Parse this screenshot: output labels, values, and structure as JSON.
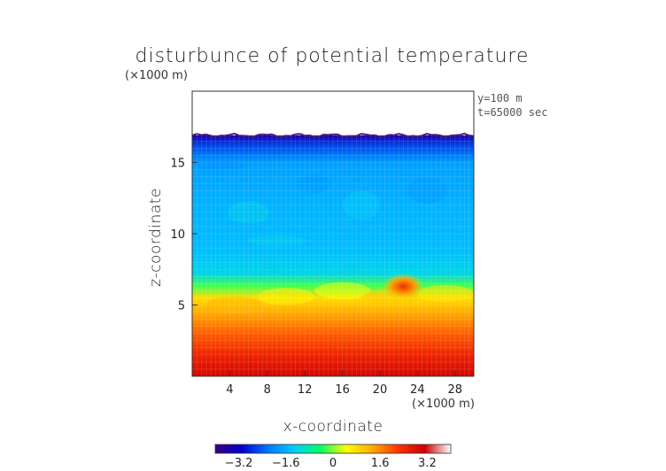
{
  "chart_data": {
    "type": "heatmap",
    "title": "disturbunce of potential temperature",
    "xlabel": "x-coordinate",
    "ylabel": "z-coordinate",
    "x_unit": "(×1000 m)",
    "y_unit": "(×1000 m)",
    "annotations": [
      "y=100 m",
      "t=65000 sec"
    ],
    "xlim": [
      0,
      30
    ],
    "ylim": [
      0,
      20
    ],
    "x_ticks": [
      4,
      8,
      12,
      16,
      20,
      24,
      28
    ],
    "y_ticks": [
      5,
      10,
      15
    ],
    "colorbar": {
      "range": [
        -4.0,
        4.0
      ],
      "ticks": [
        -3.2,
        -1.6,
        0,
        1.6,
        3.2
      ],
      "tick_labels": [
        "−3.2",
        "−1.6",
        "0",
        "1.6",
        "3.2"
      ],
      "colormap": [
        "#3a0080",
        "#0000cc",
        "#0077ff",
        "#00ccff",
        "#00ff66",
        "#ffff00",
        "#ffaa00",
        "#ff3300",
        "#cc0000",
        "#ffffff"
      ]
    },
    "z_profile": [
      {
        "z": 0.0,
        "value": 3.0
      },
      {
        "z": 1.5,
        "value": 2.5
      },
      {
        "z": 3.0,
        "value": 1.9
      },
      {
        "z": 4.5,
        "value": 1.3
      },
      {
        "z": 5.5,
        "value": 0.8
      },
      {
        "z": 6.3,
        "value": -0.2
      },
      {
        "z": 7.2,
        "value": -1.2
      },
      {
        "z": 9.0,
        "value": -1.5
      },
      {
        "z": 12.0,
        "value": -1.6
      },
      {
        "z": 15.0,
        "value": -1.8
      },
      {
        "z": 16.2,
        "value": -2.6
      },
      {
        "z": 16.9,
        "value": -3.5
      }
    ],
    "data_top_z": 16.9,
    "hot_spot": {
      "x": 22.5,
      "z": 6.3,
      "value": 2.6
    }
  },
  "colors": {
    "frame": "#333333",
    "background": "#ffffff"
  }
}
